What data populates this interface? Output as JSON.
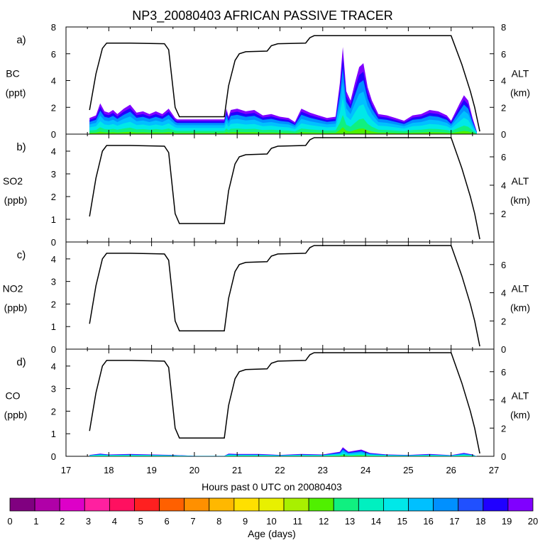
{
  "title": "NP3_20080403 AFRICAN PASSIVE TRACER",
  "xlabel": "Hours past 0 UTC on 20080403",
  "colorbar_label": "Age (days)",
  "colorbar_ticks": [
    "0",
    "1",
    "2",
    "3",
    "4",
    "5",
    "6",
    "7",
    "8",
    "9",
    "10",
    "11",
    "12",
    "13",
    "14",
    "15",
    "16",
    "17",
    "18",
    "19",
    "20"
  ],
  "colorbar_colors": [
    "#800080",
    "#b000a8",
    "#dd00c8",
    "#ff20a0",
    "#ff1060",
    "#ff2020",
    "#ff6000",
    "#ff9000",
    "#ffb800",
    "#ffe000",
    "#e8f000",
    "#a8f000",
    "#50f000",
    "#10f080",
    "#00f0c0",
    "#00e8e8",
    "#00c0ff",
    "#0090ff",
    "#2050ff",
    "#2000ff",
    "#8000ff"
  ],
  "chart_data": [
    {
      "type": "area",
      "panel": "a)",
      "ylabel_line1": "BC",
      "ylabel_line2": "(ppt)",
      "y2label_line1": "ALT",
      "y2label_line2": "(km)",
      "xlim": [
        17,
        27
      ],
      "ylim": [
        0,
        8
      ],
      "y2lim": [
        0,
        8
      ],
      "yticks": [
        0,
        2,
        4,
        6,
        8
      ],
      "y2ticks": [
        0,
        2,
        4,
        6,
        8
      ],
      "series": [
        {
          "name": "BC",
          "values": [
            [
              17.55,
              1.2
            ],
            [
              17.7,
              1.4
            ],
            [
              17.8,
              2.3
            ],
            [
              17.9,
              1.7
            ],
            [
              18.0,
              1.6
            ],
            [
              18.1,
              1.8
            ],
            [
              18.2,
              1.5
            ],
            [
              18.35,
              1.9
            ],
            [
              18.5,
              2.2
            ],
            [
              18.65,
              1.6
            ],
            [
              18.8,
              1.7
            ],
            [
              18.95,
              1.5
            ],
            [
              19.1,
              1.7
            ],
            [
              19.25,
              1.5
            ],
            [
              19.4,
              1.9
            ],
            [
              19.55,
              1.2
            ],
            [
              19.6,
              1.1
            ],
            [
              20.0,
              1.1
            ],
            [
              20.4,
              1.1
            ],
            [
              20.7,
              1.1
            ],
            [
              20.75,
              1.9
            ],
            [
              20.8,
              1.3
            ],
            [
              20.85,
              1.8
            ],
            [
              21.0,
              1.9
            ],
            [
              21.2,
              1.7
            ],
            [
              21.4,
              1.8
            ],
            [
              21.6,
              1.4
            ],
            [
              21.8,
              1.5
            ],
            [
              22.0,
              1.3
            ],
            [
              22.2,
              1.2
            ],
            [
              22.35,
              0.9
            ],
            [
              22.5,
              1.9
            ],
            [
              22.7,
              1.6
            ],
            [
              22.9,
              1.4
            ],
            [
              23.1,
              1.2
            ],
            [
              23.3,
              1.3
            ],
            [
              23.4,
              3.8
            ],
            [
              23.47,
              6.5
            ],
            [
              23.55,
              3.2
            ],
            [
              23.65,
              2.5
            ],
            [
              23.75,
              3.8
            ],
            [
              23.85,
              5.0
            ],
            [
              23.95,
              5.3
            ],
            [
              24.05,
              3.5
            ],
            [
              24.15,
              2.5
            ],
            [
              24.3,
              1.5
            ],
            [
              24.5,
              1.4
            ],
            [
              24.7,
              1.2
            ],
            [
              24.9,
              1.0
            ],
            [
              25.1,
              1.4
            ],
            [
              25.3,
              1.5
            ],
            [
              25.5,
              1.8
            ],
            [
              25.7,
              1.7
            ],
            [
              25.9,
              1.4
            ],
            [
              26.0,
              1.0
            ],
            [
              26.2,
              2.3
            ],
            [
              26.3,
              2.9
            ],
            [
              26.4,
              2.5
            ],
            [
              26.5,
              1.2
            ],
            [
              26.6,
              0.2
            ]
          ]
        },
        {
          "name": "ALT",
          "values": [
            [
              17.55,
              1.8
            ],
            [
              17.7,
              4.5
            ],
            [
              17.85,
              6.4
            ],
            [
              17.95,
              6.8
            ],
            [
              18.5,
              6.8
            ],
            [
              19.3,
              6.75
            ],
            [
              19.4,
              6.3
            ],
            [
              19.55,
              2.0
            ],
            [
              19.65,
              1.3
            ],
            [
              20.7,
              1.3
            ],
            [
              20.8,
              3.6
            ],
            [
              20.95,
              5.5
            ],
            [
              21.05,
              6.0
            ],
            [
              21.2,
              6.15
            ],
            [
              21.7,
              6.2
            ],
            [
              21.8,
              6.6
            ],
            [
              21.95,
              6.75
            ],
            [
              22.6,
              6.8
            ],
            [
              22.7,
              7.2
            ],
            [
              22.8,
              7.35
            ],
            [
              26.0,
              7.35
            ],
            [
              26.25,
              5.2
            ],
            [
              26.45,
              3.2
            ],
            [
              26.55,
              2.0
            ],
            [
              26.67,
              0.2
            ]
          ]
        }
      ]
    },
    {
      "type": "line",
      "panel": "b)",
      "ylabel_line1": "SO2",
      "ylabel_line2": "(ppb)",
      "y2label_line1": "ALT",
      "y2label_line2": "(km)",
      "xlim": [
        17,
        27
      ],
      "ylim": [
        0,
        4.75
      ],
      "y2lim": [
        0,
        7.6
      ],
      "yticks": [
        0,
        1,
        2,
        3,
        4
      ],
      "y2ticks": [
        2,
        4,
        6
      ],
      "series": [
        {
          "name": "ALT",
          "values": [
            [
              17.55,
              1.8
            ],
            [
              17.7,
              4.5
            ],
            [
              17.85,
              6.4
            ],
            [
              17.95,
              6.8
            ],
            [
              18.5,
              6.8
            ],
            [
              19.3,
              6.75
            ],
            [
              19.4,
              6.3
            ],
            [
              19.55,
              2.0
            ],
            [
              19.65,
              1.3
            ],
            [
              20.7,
              1.3
            ],
            [
              20.8,
              3.6
            ],
            [
              20.95,
              5.5
            ],
            [
              21.05,
              6.0
            ],
            [
              21.2,
              6.15
            ],
            [
              21.7,
              6.2
            ],
            [
              21.8,
              6.6
            ],
            [
              21.95,
              6.75
            ],
            [
              22.6,
              6.8
            ],
            [
              22.7,
              7.2
            ],
            [
              22.8,
              7.35
            ],
            [
              26.0,
              7.35
            ],
            [
              26.25,
              5.2
            ],
            [
              26.45,
              3.2
            ],
            [
              26.55,
              2.0
            ],
            [
              26.67,
              0.2
            ]
          ]
        }
      ]
    },
    {
      "type": "line",
      "panel": "c)",
      "ylabel_line1": "NO2",
      "ylabel_line2": "(ppb)",
      "y2label_line1": "ALT",
      "y2label_line2": "(km)",
      "xlim": [
        17,
        27
      ],
      "ylim": [
        0,
        4.75
      ],
      "y2lim": [
        0,
        7.6
      ],
      "yticks": [
        0,
        1,
        2,
        3,
        4
      ],
      "y2ticks": [
        0,
        2,
        4,
        6
      ],
      "series": [
        {
          "name": "ALT",
          "values": [
            [
              17.55,
              1.8
            ],
            [
              17.7,
              4.5
            ],
            [
              17.85,
              6.4
            ],
            [
              17.95,
              6.8
            ],
            [
              18.5,
              6.8
            ],
            [
              19.3,
              6.75
            ],
            [
              19.4,
              6.3
            ],
            [
              19.55,
              2.0
            ],
            [
              19.65,
              1.3
            ],
            [
              20.7,
              1.3
            ],
            [
              20.8,
              3.6
            ],
            [
              20.95,
              5.5
            ],
            [
              21.05,
              6.0
            ],
            [
              21.2,
              6.15
            ],
            [
              21.7,
              6.2
            ],
            [
              21.8,
              6.6
            ],
            [
              21.95,
              6.75
            ],
            [
              22.6,
              6.8
            ],
            [
              22.7,
              7.2
            ],
            [
              22.8,
              7.35
            ],
            [
              26.0,
              7.35
            ],
            [
              26.25,
              5.2
            ],
            [
              26.45,
              3.2
            ],
            [
              26.55,
              2.0
            ],
            [
              26.67,
              0.2
            ]
          ]
        }
      ]
    },
    {
      "type": "area",
      "panel": "d)",
      "ylabel_line1": "CO",
      "ylabel_line2": "(ppb)",
      "y2label_line1": "ALT",
      "y2label_line2": "(km)",
      "xlim": [
        17,
        27
      ],
      "ylim": [
        0,
        4.75
      ],
      "y2lim": [
        0,
        7.6
      ],
      "yticks": [
        0,
        1,
        2,
        3,
        4
      ],
      "y2ticks": [
        0,
        2,
        4,
        6
      ],
      "xticks": [
        17,
        18,
        19,
        20,
        21,
        22,
        23,
        24,
        25,
        26,
        27
      ],
      "series": [
        {
          "name": "CO",
          "values": [
            [
              17.55,
              0.06
            ],
            [
              17.8,
              0.12
            ],
            [
              18.0,
              0.08
            ],
            [
              18.5,
              0.1
            ],
            [
              19.0,
              0.08
            ],
            [
              19.5,
              0.06
            ],
            [
              20.0,
              0.02
            ],
            [
              20.7,
              0.02
            ],
            [
              20.8,
              0.12
            ],
            [
              21.0,
              0.1
            ],
            [
              21.5,
              0.1
            ],
            [
              22.0,
              0.06
            ],
            [
              22.5,
              0.1
            ],
            [
              23.0,
              0.08
            ],
            [
              23.4,
              0.2
            ],
            [
              23.47,
              0.4
            ],
            [
              23.6,
              0.2
            ],
            [
              23.9,
              0.3
            ],
            [
              24.1,
              0.15
            ],
            [
              24.5,
              0.08
            ],
            [
              25.0,
              0.06
            ],
            [
              25.5,
              0.1
            ],
            [
              26.0,
              0.05
            ],
            [
              26.3,
              0.15
            ],
            [
              26.5,
              0.08
            ],
            [
              26.6,
              0.0
            ]
          ]
        },
        {
          "name": "ALT",
          "values": [
            [
              17.55,
              1.8
            ],
            [
              17.7,
              4.5
            ],
            [
              17.85,
              6.4
            ],
            [
              17.95,
              6.8
            ],
            [
              18.5,
              6.8
            ],
            [
              19.3,
              6.75
            ],
            [
              19.4,
              6.3
            ],
            [
              19.55,
              2.0
            ],
            [
              19.65,
              1.3
            ],
            [
              20.7,
              1.3
            ],
            [
              20.8,
              3.6
            ],
            [
              20.95,
              5.5
            ],
            [
              21.05,
              6.0
            ],
            [
              21.2,
              6.15
            ],
            [
              21.7,
              6.2
            ],
            [
              21.8,
              6.6
            ],
            [
              21.95,
              6.75
            ],
            [
              22.6,
              6.8
            ],
            [
              22.7,
              7.2
            ],
            [
              22.8,
              7.35
            ],
            [
              26.0,
              7.35
            ],
            [
              26.25,
              5.2
            ],
            [
              26.45,
              3.2
            ],
            [
              26.55,
              2.0
            ],
            [
              26.67,
              0.2
            ]
          ]
        }
      ]
    }
  ]
}
